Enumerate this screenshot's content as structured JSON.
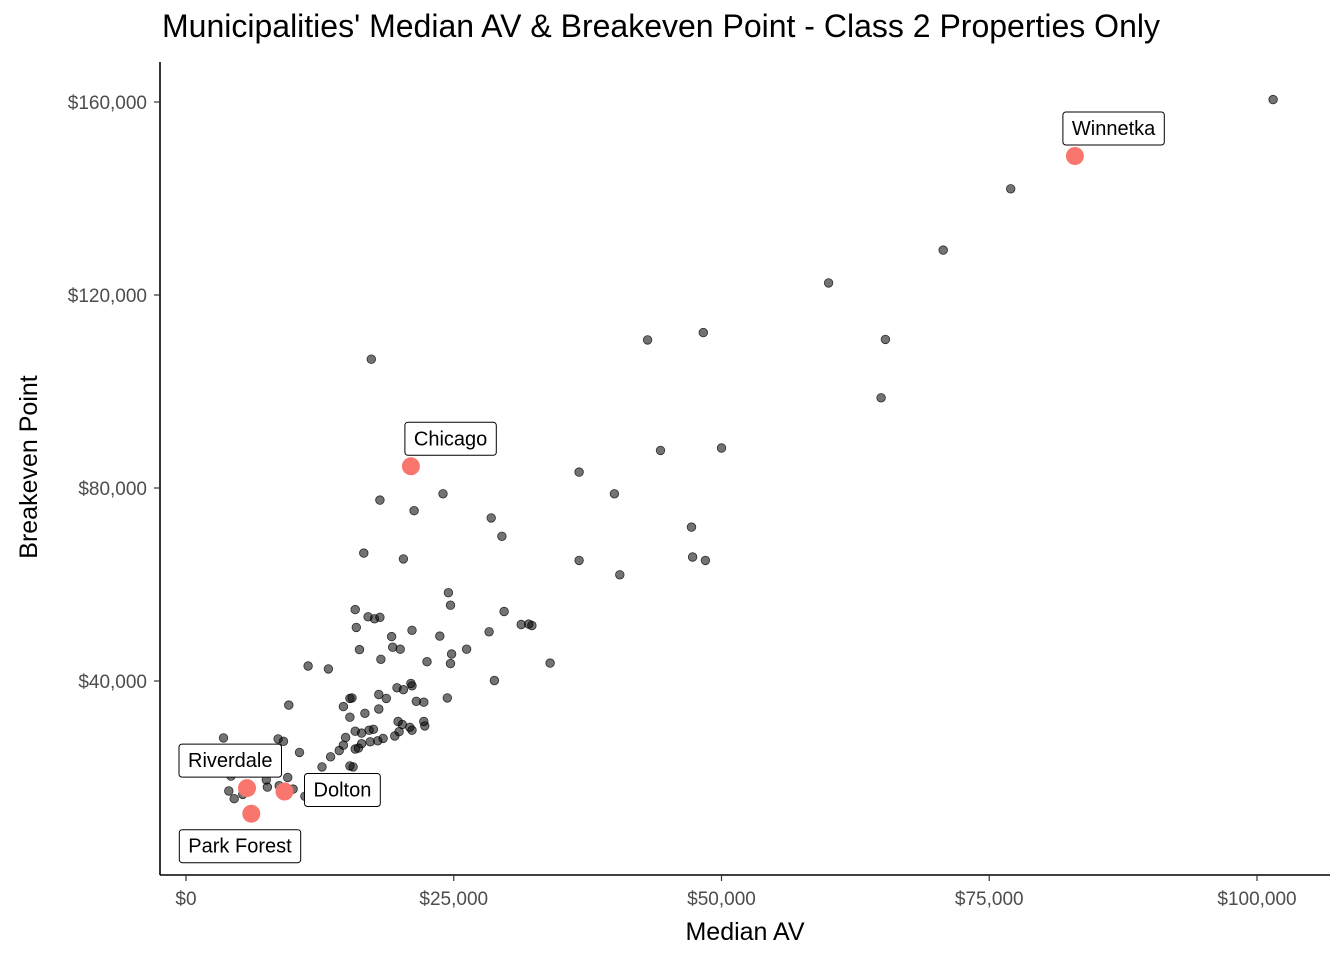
{
  "chart_data": {
    "type": "scatter",
    "title": "Municipalities' Median AV & Breakeven Point - Class 2 Properties Only",
    "xlabel": "Median AV",
    "ylabel": "Breakeven Point",
    "xlim": [
      -2000,
      106000
    ],
    "ylim": [
      -2000,
      168000
    ],
    "x_ticks": [
      0,
      25000,
      50000,
      75000,
      100000
    ],
    "x_tick_labels": [
      "$0",
      "$25,000",
      "$50,000",
      "$75,000",
      "$100,000"
    ],
    "y_ticks": [
      40000,
      80000,
      120000,
      160000
    ],
    "y_tick_labels": [
      "$40,000",
      "$80,000",
      "$120,000",
      "$160,000"
    ],
    "grid": false,
    "colors": {
      "points": "#000000",
      "highlight": "#f8766d"
    },
    "highlighted": [
      {
        "name": "Winnetka",
        "x": 83000,
        "y": 148800
      },
      {
        "name": "Chicago",
        "x": 21000,
        "y": 84500
      },
      {
        "name": "Riverdale",
        "x": 5700,
        "y": 17800
      },
      {
        "name": "Dolton",
        "x": 9200,
        "y": 17100
      },
      {
        "name": "Park Forest",
        "x": 6100,
        "y": 12500
      }
    ],
    "points": [
      [
        101500,
        160500
      ],
      [
        77000,
        142000
      ],
      [
        70700,
        129300
      ],
      [
        60000,
        122500
      ],
      [
        65300,
        110800
      ],
      [
        48300,
        112200
      ],
      [
        43100,
        110700
      ],
      [
        17300,
        106700
      ],
      [
        64900,
        98700
      ],
      [
        50000,
        88300
      ],
      [
        44300,
        87800
      ],
      [
        36700,
        83300
      ],
      [
        40000,
        78800
      ],
      [
        24000,
        78800
      ],
      [
        18100,
        77500
      ],
      [
        21300,
        75300
      ],
      [
        28500,
        73800
      ],
      [
        47200,
        71900
      ],
      [
        29500,
        70000
      ],
      [
        16600,
        66500
      ],
      [
        20300,
        65300
      ],
      [
        36700,
        65000
      ],
      [
        47300,
        65700
      ],
      [
        48500,
        65000
      ],
      [
        40500,
        62000
      ],
      [
        24500,
        58300
      ],
      [
        24700,
        55700
      ],
      [
        15800,
        54800
      ],
      [
        29700,
        54400
      ],
      [
        17000,
        53300
      ],
      [
        17600,
        52900
      ],
      [
        18100,
        53200
      ],
      [
        32000,
        51800
      ],
      [
        31300,
        51700
      ],
      [
        32300,
        51500
      ],
      [
        15900,
        51100
      ],
      [
        21100,
        50500
      ],
      [
        28300,
        50200
      ],
      [
        19200,
        49200
      ],
      [
        23700,
        49300
      ],
      [
        19300,
        47000
      ],
      [
        20000,
        46600
      ],
      [
        16200,
        46500
      ],
      [
        26200,
        46600
      ],
      [
        24800,
        45600
      ],
      [
        18200,
        44500
      ],
      [
        11400,
        43100
      ],
      [
        13300,
        42500
      ],
      [
        24700,
        43600
      ],
      [
        22500,
        44000
      ],
      [
        34000,
        43700
      ],
      [
        28800,
        40100
      ],
      [
        21000,
        39500
      ],
      [
        21100,
        39000
      ],
      [
        19700,
        38600
      ],
      [
        20300,
        38200
      ],
      [
        18000,
        37200
      ],
      [
        18700,
        36400
      ],
      [
        15300,
        36400
      ],
      [
        15500,
        36500
      ],
      [
        24400,
        36500
      ],
      [
        21500,
        35800
      ],
      [
        22200,
        35600
      ],
      [
        9600,
        35000
      ],
      [
        14700,
        34700
      ],
      [
        18000,
        34200
      ],
      [
        16700,
        33300
      ],
      [
        15300,
        32500
      ],
      [
        22200,
        31600
      ],
      [
        22300,
        30700
      ],
      [
        19800,
        31600
      ],
      [
        20200,
        31000
      ],
      [
        17500,
        30000
      ],
      [
        17100,
        29800
      ],
      [
        19900,
        29500
      ],
      [
        20900,
        30400
      ],
      [
        21100,
        29800
      ],
      [
        15800,
        29600
      ],
      [
        16400,
        29200
      ],
      [
        19500,
        28600
      ],
      [
        14900,
        28300
      ],
      [
        18400,
        28100
      ],
      [
        17200,
        27400
      ],
      [
        17900,
        27600
      ],
      [
        16400,
        27000
      ],
      [
        3500,
        28200
      ],
      [
        8600,
        28000
      ],
      [
        9100,
        27500
      ],
      [
        14700,
        26700
      ],
      [
        16100,
        26100
      ],
      [
        15800,
        25900
      ],
      [
        10600,
        25200
      ],
      [
        14300,
        25600
      ],
      [
        13500,
        24300
      ],
      [
        15300,
        22400
      ],
      [
        15600,
        22200
      ],
      [
        12700,
        22200
      ],
      [
        4200,
        20300
      ],
      [
        9500,
        20000
      ],
      [
        7500,
        19500
      ],
      [
        8700,
        18300
      ],
      [
        10000,
        17600
      ],
      [
        11100,
        16100
      ],
      [
        4500,
        15600
      ],
      [
        4000,
        17200
      ],
      [
        5300,
        16500
      ],
      [
        6000,
        18000
      ],
      [
        7600,
        18000
      ]
    ]
  }
}
